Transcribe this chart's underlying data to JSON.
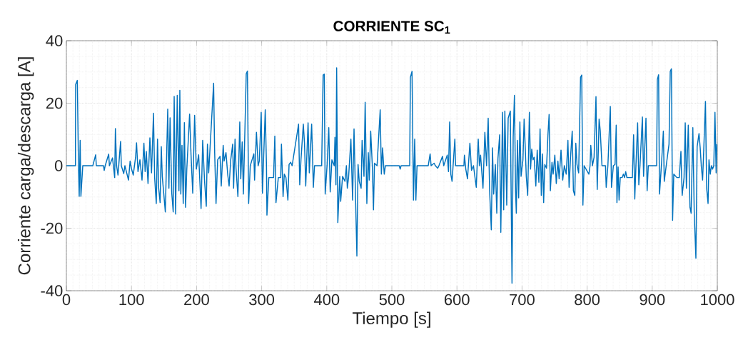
{
  "chart_data": {
    "type": "line",
    "title": "CORRIENTE SC$_{1}$",
    "xlabel": "Tiempo [s]",
    "ylabel": "Corriente carga/descarga [A]",
    "xlim": [
      0,
      1000
    ],
    "ylim": [
      -40,
      40
    ],
    "xticks": [
      0,
      100,
      200,
      300,
      400,
      500,
      600,
      700,
      800,
      900,
      1000
    ],
    "yticks": [
      -40,
      -20,
      0,
      20,
      40
    ],
    "grid": true,
    "color": "#0072bd",
    "x": [
      0,
      13.9,
      14.2,
      16.8,
      18.6,
      19.7,
      21.2,
      22.3,
      25.2,
      40.6,
      45.0,
      46.0,
      57.0,
      58.1,
      59.6,
      65.0,
      66.1,
      70.9,
      74.2,
      75.3,
      77.1,
      79.3,
      83.3,
      84.4,
      88.1,
      89.9,
      95.4,
      97.9,
      99.8,
      102.7,
      106.3,
      107.8,
      110.0,
      113.0,
      116.2,
      119.1,
      121.0,
      122.8,
      125.4,
      128.3,
      130.8,
      133.8,
      135.6,
      138.1,
      140.0,
      141.8,
      144.0,
      145.8,
      147.3,
      152.0,
      155.7,
      157.5,
      159.3,
      161.9,
      164.1,
      165.6,
      167.8,
      170.3,
      172.9,
      174.3,
      175.8,
      177.6,
      179.5,
      181.3,
      183.1,
      185.0,
      189.3,
      191.5,
      194.1,
      197.0,
      199.6,
      203.2,
      206.9,
      209.4,
      212.3,
      214.9,
      216.7,
      218.6,
      226.2,
      227.7,
      229.9,
      232.4,
      236.1,
      237.9,
      240.9,
      242.3,
      245.2,
      247.8,
      250.0,
      252.5,
      255.5,
      256.9,
      259.1,
      260.6,
      263.5,
      266.4,
      267.9,
      270.1,
      271.9,
      273.7,
      276.3,
      278.1,
      280.0,
      282.5,
      288.0,
      289.1,
      292.0,
      294.6,
      296.4,
      299.3,
      301.2,
      305.5,
      307.4,
      308.1,
      311.0,
      318.3,
      320.2,
      322.0,
      325.6,
      329.3,
      330.4,
      332.9,
      334.8,
      337.3,
      340.3,
      342.1,
      344.6,
      346.8,
      356.7,
      358.5,
      360.4,
      364.0,
      365.8,
      367.7,
      371.3,
      373.2,
      376.8,
      379.4,
      381.2,
      392.2,
      394.4,
      396.2,
      397.6,
      400.6,
      403.1,
      405.3,
      407.9,
      411.5,
      412.6,
      414.1,
      415.2,
      417.0,
      420.0,
      421.4,
      424.3,
      428.0,
      430.2,
      431.6,
      433.5,
      437.1,
      439.7,
      441.9,
      444.4,
      446.3,
      448.1,
      449.9,
      452.8,
      454.3,
      457.2,
      459.0,
      461.6,
      463.8,
      465.3,
      467.5,
      470.0,
      471.8,
      473.3,
      477.3,
      482.1,
      483.9,
      485.7,
      488.3,
      490.1,
      511.3,
      512.8,
      514.2,
      527.4,
      528.5,
      531.0,
      533.2,
      535.1,
      536.9,
      538.7,
      555.9,
      558.8,
      560.3,
      565.0,
      566.9,
      570.5,
      572.3,
      577.8,
      579.7,
      585.1,
      587.0,
      588.8,
      590.6,
      592.5,
      596.8,
      597.9,
      610.7,
      611.5,
      613.6,
      616.2,
      619.9,
      622.4,
      625.4,
      629.7,
      632.7,
      634.5,
      636.3,
      640.0,
      642.9,
      645.5,
      648.0,
      650.2,
      652.8,
      654.6,
      656.4,
      659.0,
      661.2,
      663.0,
      665.6,
      667.4,
      670.0,
      671.8,
      673.6,
      676.5,
      678.7,
      682.0,
      684.6,
      686.4,
      688.3,
      690.1,
      691.2,
      693.0,
      694.8,
      696.7,
      698.5,
      701.4,
      703.2,
      705.1,
      706.5,
      708.7,
      711.3,
      713.1,
      714.9,
      716.8,
      718.6,
      721.2,
      723.3,
      725.9,
      727.7,
      729.6,
      731.4,
      733.2,
      735.0,
      737.6,
      739.8,
      741.6,
      743.5,
      746.0,
      747.8,
      750.4,
      752.6,
      755.1,
      757.0,
      759.9,
      762.5,
      765.0,
      767.9,
      770.5,
      772.3,
      774.5,
      777.1,
      778.9,
      781.1,
      782.6,
      784.4,
      787.0,
      789.9,
      791.7,
      793.5,
      795.4,
      802.7,
      804.5,
      805.6,
      808.1,
      810.7,
      813.6,
      815.5,
      817.3,
      818.4,
      820.2,
      822.8,
      828.2,
      829.3,
      831.9,
      835.6,
      837.4,
      840.3,
      842.9,
      844.7,
      845.8,
      847.6,
      849.1,
      850.9,
      853.8,
      855.7,
      857.5,
      859.3,
      861.1,
      869.5,
      871.4,
      873.2,
      875.0,
      877.6,
      879.4,
      881.2,
      884.9,
      886.7,
      890.4,
      892.2,
      894.0,
      906.8,
      907.9,
      909.8,
      911.2,
      914.1,
      917.1,
      918.5,
      921.5,
      925.8,
      927.7,
      929.5,
      931.3,
      933.1,
      937.9,
      941.6,
      944.1,
      946.0,
      948.9,
      950.7,
      952.5,
      955.4,
      958.0,
      959.8,
      962.4,
      964.6,
      967.1,
      969.0,
      971.9,
      973.7,
      975.5,
      977.4,
      979.2,
      981.8,
      983.6,
      985.8,
      987.2,
      989.1,
      990.9,
      992.7,
      994.6,
      996.4,
      998.2,
      999.3
    ],
    "values": [
      0,
      0,
      26.0,
      27.3,
      0,
      -9.8,
      8.1,
      -9.8,
      0,
      0,
      3.5,
      0,
      0,
      -1.5,
      0,
      3.7,
      0,
      2.5,
      -3.8,
      11.9,
      0,
      -3.0,
      7.8,
      0,
      -2.5,
      0,
      -4.6,
      1.5,
      -0.8,
      -3.0,
      2.7,
      7.3,
      -1.9,
      1.9,
      -4.6,
      7.2,
      -1.9,
      4.6,
      -5.7,
      8.9,
      -2.3,
      16.8,
      -3.8,
      -12.1,
      8.5,
      -7.2,
      -11.8,
      6.1,
      -3.4,
      -14.8,
      18.1,
      -7.2,
      15.3,
      -8.8,
      -14.8,
      22.2,
      -15.5,
      22.5,
      -8.0,
      24.1,
      -9.1,
      6.5,
      -12.1,
      13.8,
      -13.3,
      -1.1,
      16.5,
      3.5,
      -8.8,
      16.1,
      -1.1,
      3.5,
      -13.7,
      8.1,
      -5.0,
      -13.0,
      6.9,
      -2.3,
      26.4,
      5.0,
      -12.1,
      1.9,
      3.0,
      -6.5,
      6.5,
      1.5,
      4.2,
      -2.7,
      -6.5,
      1.9,
      6.9,
      -7.2,
      8.5,
      -0.8,
      -9.9,
      14.0,
      -4.2,
      7.6,
      -9.1,
      6.5,
      29.4,
      30.3,
      -12.1,
      0,
      3.8,
      -4.6,
      10.7,
      0,
      1.5,
      17.1,
      -8.8,
      17.9,
      0,
      -15.8,
      -3.8,
      -3.8,
      9.5,
      -11.8,
      -3.8,
      -3.8,
      6.9,
      -9.9,
      -2.7,
      -3.8,
      -11.0,
      0.4,
      1.1,
      0,
      13.3,
      -6.1,
      1.9,
      13.3,
      7.2,
      -6.5,
      13.7,
      -2.3,
      13.3,
      -6.9,
      0,
      0,
      29.0,
      29.3,
      -9.1,
      0.4,
      12.2,
      -8.4,
      1.9,
      0,
      9.1,
      -6.1,
      31.3,
      -18.2,
      -3.4,
      -11.4,
      -3.4,
      -5.0,
      0,
      -7.2,
      -3.8,
      8.5,
      -11.0,
      11.8,
      -11.8,
      -28.9,
      0.4,
      -5.0,
      -7.2,
      8.1,
      -3.4,
      20.3,
      -12.1,
      4.2,
      -4.6,
      11.1,
      0,
      -14.1,
      0.8,
      0,
      17.9,
      -2.7,
      5.7,
      -2.7,
      0,
      0,
      -1.1,
      0,
      0,
      28.3,
      30.2,
      -11.0,
      8.5,
      -11.0,
      0,
      0,
      3.8,
      0,
      0.8,
      0,
      -0.8,
      0,
      3.0,
      0,
      3.4,
      -1.9,
      14.0,
      -2.7,
      -5.0,
      8.5,
      0,
      0,
      3.4,
      -1.1,
      -4.2,
      7.2,
      -1.5,
      0,
      -6.9,
      8.5,
      0,
      3.4,
      -7.2,
      10.7,
      0,
      15.2,
      -8.0,
      -20.5,
      5.7,
      -9.1,
      0.4,
      -15.2,
      2.3,
      9.9,
      -21.3,
      17.1,
      -14.1,
      17.5,
      -12.6,
      15.2,
      17.5,
      -37.6,
      9.1,
      22.5,
      -8.4,
      -15.2,
      8.1,
      -10.3,
      14.0,
      -3.4,
      1.9,
      14.9,
      5.0,
      -3.4,
      -9.5,
      17.1,
      -1.1,
      5.3,
      1.9,
      2.7,
      -6.5,
      5.0,
      -5.3,
      11.8,
      -9.5,
      3.8,
      -11.8,
      0.4,
      -0.8,
      9.9,
      16.4,
      -8.0,
      1.1,
      -2.7,
      3.4,
      -5.7,
      1.5,
      -4.2,
      5.0,
      -4.6,
      0,
      -2.7,
      8.1,
      -6.9,
      2.7,
      11.1,
      -8.0,
      -9.5,
      7.2,
      0.4,
      -2.3,
      28.3,
      29.0,
      -12.6,
      0,
      -2.7,
      0,
      6.5,
      0,
      2.7,
      22.1,
      -7.6,
      5.7,
      14.9,
      11.1,
      0,
      0,
      -6.9,
      0,
      19.0,
      -6.9,
      0,
      0.4,
      13.0,
      -11.8,
      -0.4,
      -11.0,
      -3.8,
      -3.8,
      -2.7,
      -3.8,
      -1.9,
      -3.8,
      -3.8,
      9.9,
      -10.7,
      0,
      13.7,
      -6.1,
      0,
      15.6,
      -3.4,
      15.2,
      -8.0,
      0,
      0,
      27.6,
      29.1,
      -9.1,
      0,
      11.1,
      -5.0,
      0,
      6.9,
      30.2,
      31.0,
      -17.5,
      -2.7,
      -3.8,
      -3.8,
      4.6,
      -9.5,
      -3.8,
      13.7,
      -7.2,
      13.0,
      -13.3,
      -15.2,
      12.2,
      -15.6,
      -29.6,
      6.1,
      10.3,
      5.7,
      -0.4,
      -4.6,
      5.3,
      20.6,
      -7.2,
      -12.1,
      1.9,
      -2.7,
      0,
      -1.1,
      0,
      17.1,
      -2.3,
      6.9
    ]
  }
}
